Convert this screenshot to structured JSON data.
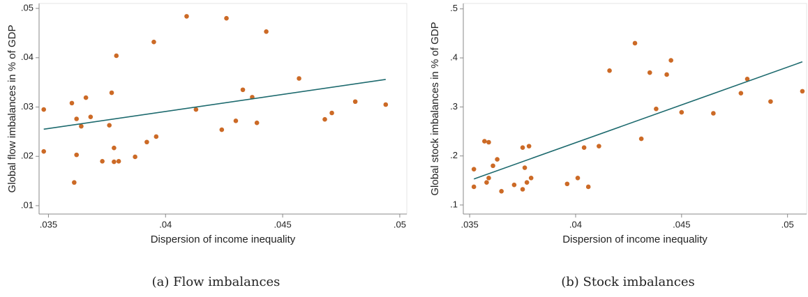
{
  "chart_data": [
    {
      "type": "scatter",
      "xlabel": "Dispersion of income inequality",
      "ylabel": "Global flow imbalances in % of GDP",
      "caption": "(a) Flow imbalances",
      "color": "#cc6a26",
      "xlim": [
        0.0346,
        0.0503
      ],
      "ylim": [
        0.0083,
        0.051
      ],
      "xticks": [
        {
          "value": 0.035,
          "label": ".035"
        },
        {
          "value": 0.04,
          "label": ".04"
        },
        {
          "value": 0.045,
          "label": ".045"
        },
        {
          "value": 0.05,
          "label": ".05"
        }
      ],
      "yticks": [
        {
          "value": 0.01,
          "label": ".01"
        },
        {
          "value": 0.02,
          "label": ".02"
        },
        {
          "value": 0.03,
          "label": ".03"
        },
        {
          "value": 0.04,
          "label": ".04"
        },
        {
          "value": 0.05,
          "label": ".05"
        }
      ],
      "x": [
        0.0348,
        0.0348,
        0.036,
        0.0361,
        0.0362,
        0.0362,
        0.0364,
        0.0366,
        0.0368,
        0.0373,
        0.0376,
        0.0377,
        0.0378,
        0.0378,
        0.0379,
        0.038,
        0.0387,
        0.0392,
        0.0395,
        0.0396,
        0.0409,
        0.0413,
        0.0424,
        0.0426,
        0.043,
        0.0433,
        0.0437,
        0.0439,
        0.0443,
        0.0457,
        0.0468,
        0.0471,
        0.0481,
        0.0494
      ],
      "y": [
        0.0295,
        0.021,
        0.0308,
        0.0147,
        0.0276,
        0.0203,
        0.0261,
        0.0319,
        0.028,
        0.019,
        0.0263,
        0.0329,
        0.0217,
        0.0189,
        0.0404,
        0.019,
        0.0199,
        0.0229,
        0.0432,
        0.024,
        0.0484,
        0.0295,
        0.0254,
        0.048,
        0.0272,
        0.0335,
        0.032,
        0.0268,
        0.0453,
        0.0358,
        0.0275,
        0.0288,
        0.0311,
        0.0305
      ],
      "fit_line": {
        "color": "#1d6a6e",
        "x": [
          0.0348,
          0.0494
        ],
        "y": [
          0.0255,
          0.0356
        ]
      }
    },
    {
      "type": "scatter",
      "xlabel": "Dispersion of income inequality",
      "ylabel": "Global stock imbalances in % of GDP",
      "caption": "(b) Stock imbalances",
      "color": "#cc6a26",
      "xlim": [
        0.0347,
        0.0509
      ],
      "ylim": [
        0.0815,
        0.511
      ],
      "xticks": [
        {
          "value": 0.035,
          "label": ".035"
        },
        {
          "value": 0.04,
          "label": ".04"
        },
        {
          "value": 0.045,
          "label": ".045"
        },
        {
          "value": 0.05,
          "label": ".05"
        }
      ],
      "yticks": [
        {
          "value": 0.1,
          "label": ".1"
        },
        {
          "value": 0.2,
          "label": ".2"
        },
        {
          "value": 0.3,
          "label": ".3"
        },
        {
          "value": 0.4,
          "label": ".4"
        },
        {
          "value": 0.5,
          "label": ".5"
        }
      ],
      "x": [
        0.0352,
        0.0352,
        0.0357,
        0.0358,
        0.0359,
        0.0359,
        0.0361,
        0.0363,
        0.0365,
        0.0371,
        0.0375,
        0.0375,
        0.0376,
        0.0377,
        0.0378,
        0.0379,
        0.0396,
        0.0401,
        0.0404,
        0.0406,
        0.0411,
        0.0416,
        0.0428,
        0.0431,
        0.0435,
        0.0438,
        0.0443,
        0.0445,
        0.045,
        0.0465,
        0.0478,
        0.0481,
        0.0492,
        0.0507
      ],
      "y": [
        0.137,
        0.173,
        0.23,
        0.146,
        0.228,
        0.155,
        0.18,
        0.193,
        0.128,
        0.141,
        0.132,
        0.217,
        0.176,
        0.146,
        0.22,
        0.155,
        0.143,
        0.155,
        0.217,
        0.137,
        0.22,
        0.374,
        0.43,
        0.235,
        0.37,
        0.296,
        0.366,
        0.395,
        0.289,
        0.287,
        0.328,
        0.357,
        0.311,
        0.332
      ],
      "fit_line": {
        "color": "#1d6a6e",
        "x": [
          0.0352,
          0.0507
        ],
        "y": [
          0.153,
          0.392
        ]
      }
    }
  ]
}
